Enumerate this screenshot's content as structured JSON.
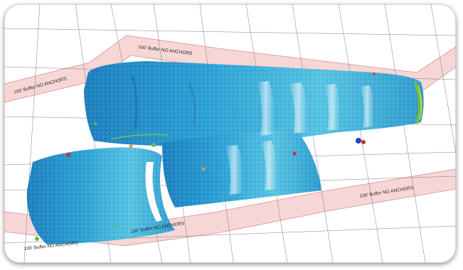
{
  "map": {
    "buffer_labels": [
      "100' Buffer NO ANCHORS",
      "100' Buffer NO ANCHORS",
      "100' Buffer NO ANCHORS",
      "100' Buffer NO ANCHORS",
      "100' Buffer NO ANCHORS"
    ],
    "colors": {
      "buffer_fill": "#f7d6d6",
      "buffer_edge": "#d98e8e",
      "sonar_blue": "#1f8fc8",
      "sonar_cyan": "#3fb3dc",
      "sonar_highlight": "#e8f7fb",
      "grid_line": "#7d7d7d"
    }
  }
}
